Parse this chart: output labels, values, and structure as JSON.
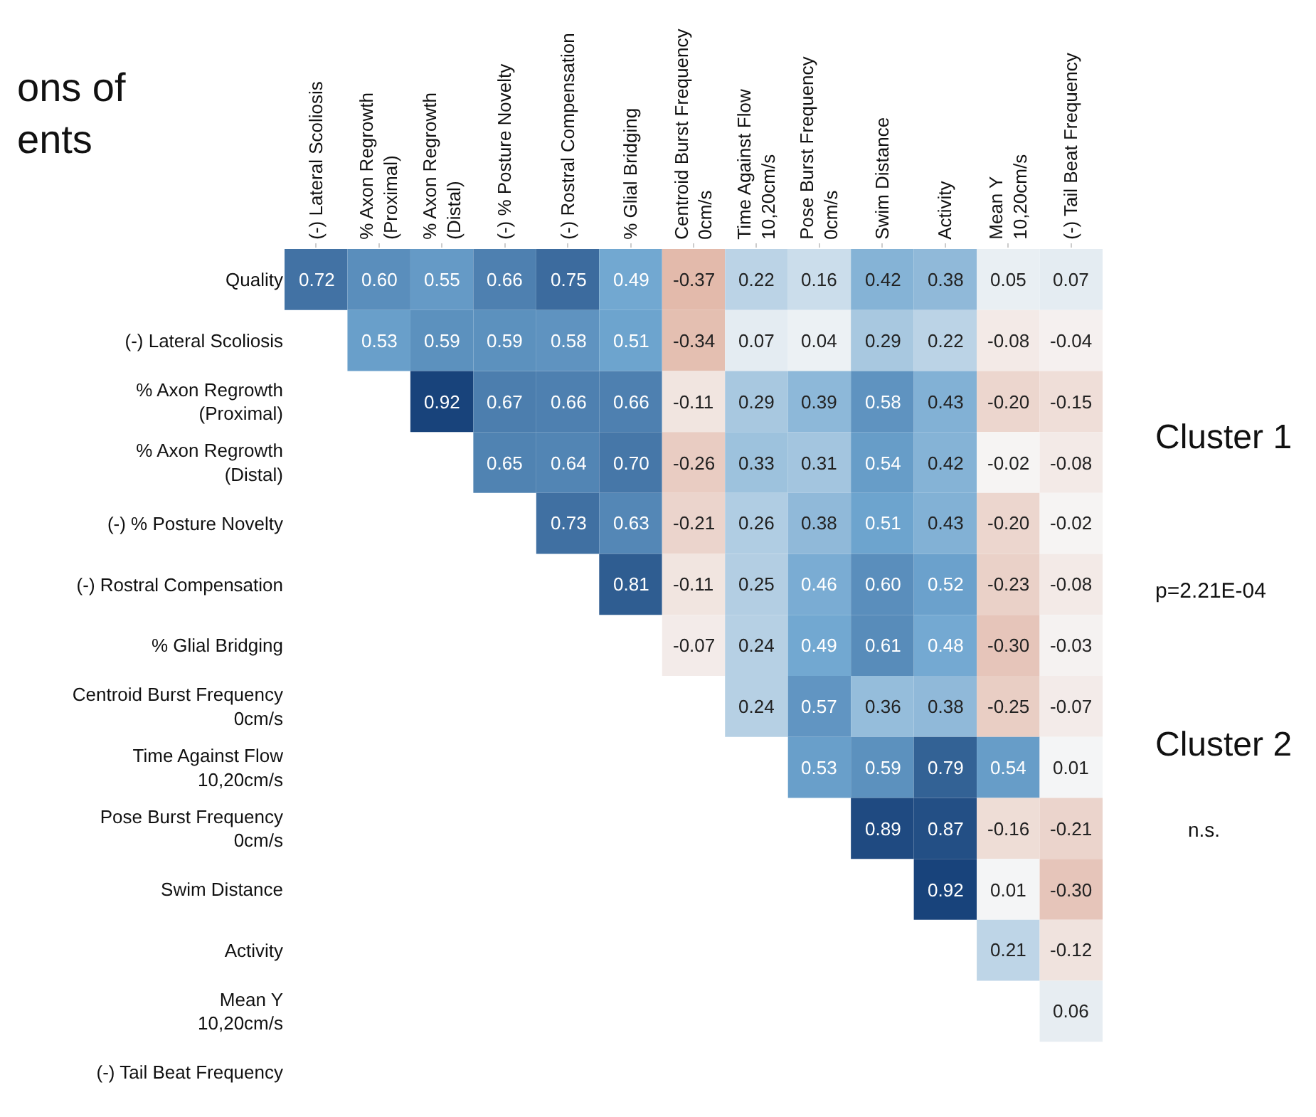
{
  "chart_data": {
    "type": "heatmap",
    "categories": [
      "(-) Lateral Scoliosis",
      "% Axon Regrowth\n(Proximal)",
      "% Axon Regrowth\n(Distal)",
      "(-) % Posture Novelty",
      "(-) Rostral Compensation",
      "% Glial Bridging",
      "Centroid Burst Frequency\n0cm/s",
      "Time Against Flow\n10,20cm/s",
      "Pose Burst Frequency\n0cm/s",
      "Swim Distance",
      "Activity",
      "Mean Y\n10,20cm/s",
      "(-) Tail Beat Frequency"
    ],
    "y_categories": [
      "Quality",
      "(-) Lateral Scoliosis",
      "% Axon Regrowth\n(Proximal)",
      "% Axon Regrowth\n(Distal)",
      "(-) % Posture Novelty",
      "(-) Rostral Compensation",
      "% Glial Bridging",
      "Centroid Burst Frequency\n0cm/s",
      "Time Against Flow\n10,20cm/s",
      "Pose Burst Frequency\n0cm/s",
      "Swim Distance",
      "Activity",
      "Mean Y\n10,20cm/s",
      "(-) Tail Beat Frequency"
    ],
    "cells": [
      [
        0.72,
        0.6,
        0.55,
        0.66,
        0.75,
        0.49,
        -0.37,
        0.22,
        0.16,
        0.42,
        0.38,
        0.05,
        0.07
      ],
      [
        null,
        0.53,
        0.59,
        0.59,
        0.58,
        0.51,
        -0.34,
        0.07,
        0.04,
        0.29,
        0.22,
        -0.08,
        -0.04
      ],
      [
        null,
        null,
        0.92,
        0.67,
        0.66,
        0.66,
        -0.11,
        0.29,
        0.39,
        0.58,
        0.43,
        -0.2,
        -0.15
      ],
      [
        null,
        null,
        null,
        0.65,
        0.64,
        0.7,
        -0.26,
        0.33,
        0.31,
        0.54,
        0.42,
        -0.02,
        -0.08
      ],
      [
        null,
        null,
        null,
        null,
        0.73,
        0.63,
        -0.21,
        0.26,
        0.38,
        0.51,
        0.43,
        -0.2,
        -0.02
      ],
      [
        null,
        null,
        null,
        null,
        null,
        0.81,
        -0.11,
        0.25,
        0.46,
        0.6,
        0.52,
        -0.23,
        -0.08
      ],
      [
        null,
        null,
        null,
        null,
        null,
        null,
        -0.07,
        0.24,
        0.49,
        0.61,
        0.48,
        -0.3,
        -0.03
      ],
      [
        null,
        null,
        null,
        null,
        null,
        null,
        null,
        0.24,
        0.57,
        0.36,
        0.38,
        -0.25,
        -0.07
      ],
      [
        null,
        null,
        null,
        null,
        null,
        null,
        null,
        null,
        0.53,
        0.59,
        0.79,
        0.54,
        0.01
      ],
      [
        null,
        null,
        null,
        null,
        null,
        null,
        null,
        null,
        null,
        0.89,
        0.87,
        -0.16,
        -0.21
      ],
      [
        null,
        null,
        null,
        null,
        null,
        null,
        null,
        null,
        null,
        null,
        0.92,
        0.01,
        -0.3
      ],
      [
        null,
        null,
        null,
        null,
        null,
        null,
        null,
        null,
        null,
        null,
        null,
        0.21,
        -0.12
      ],
      [
        null,
        null,
        null,
        null,
        null,
        null,
        null,
        null,
        null,
        null,
        null,
        null,
        0.06
      ],
      [
        null,
        null,
        null,
        null,
        null,
        null,
        null,
        null,
        null,
        null,
        null,
        null,
        null
      ]
    ],
    "data_labels": true,
    "cell_labels": [
      [
        "0.72",
        "0.60",
        "0.55",
        "0.66",
        "0.75",
        "0.49",
        "-0.37",
        "0.22",
        "0.16",
        "0.42",
        "0.38",
        "0.05",
        "0.07"
      ],
      [
        null,
        "0.53",
        "0.59",
        "0.59",
        "0.58",
        "0.51",
        "-0.34",
        "0.07",
        "0.04",
        "0.29",
        "0.22",
        "-0.08",
        "-0.04"
      ],
      [
        null,
        null,
        "0.92",
        "0.67",
        "0.66",
        "0.66",
        "-0.11",
        "0.29",
        "0.39",
        "0.58",
        "0.43",
        "-0.20",
        "-0.15"
      ],
      [
        null,
        null,
        null,
        "0.65",
        "0.64",
        "0.70",
        "-0.26",
        "0.33",
        "0.31",
        "0.54",
        "0.42",
        "-0.02",
        "-0.08"
      ],
      [
        null,
        null,
        null,
        null,
        "0.73",
        "0.63",
        "-0.21",
        "0.26",
        "0.38",
        "0.51",
        "0.43",
        "-0.20",
        "-0.02"
      ],
      [
        null,
        null,
        null,
        null,
        null,
        "0.81",
        "-0.11",
        "0.25",
        "0.46",
        "0.60",
        "0.52",
        "-0.23",
        "-0.08"
      ],
      [
        null,
        null,
        null,
        null,
        null,
        null,
        "-0.07",
        "0.24",
        "0.49",
        "0.61",
        "0.48",
        "-0.30",
        "-0.03"
      ],
      [
        null,
        null,
        null,
        null,
        null,
        null,
        null,
        "0.24",
        "0.57",
        "0.36",
        "0.38",
        "-0.25",
        "-0.07"
      ],
      [
        null,
        null,
        null,
        null,
        null,
        null,
        null,
        null,
        "0.53",
        "0.59",
        "0.79",
        "0.54",
        "0.01"
      ],
      [
        null,
        null,
        null,
        null,
        null,
        null,
        null,
        null,
        null,
        "0.89",
        "0.87",
        "-0.16",
        "-0.21"
      ],
      [
        null,
        null,
        null,
        null,
        null,
        null,
        null,
        null,
        null,
        null,
        "0.92",
        "0.01",
        "-0.30"
      ],
      [
        null,
        null,
        null,
        null,
        null,
        null,
        null,
        null,
        null,
        null,
        null,
        "0.21",
        "-0.12"
      ],
      [
        null,
        null,
        null,
        null,
        null,
        null,
        null,
        null,
        null,
        null,
        null,
        null,
        "0.06"
      ],
      [
        null,
        null,
        null,
        null,
        null,
        null,
        null,
        null,
        null,
        null,
        null,
        null,
        null
      ]
    ],
    "annotations": [
      "ons of\nents",
      "Cluster 1",
      "p=2.21E-04",
      "Cluster 2",
      "n.s."
    ]
  }
}
